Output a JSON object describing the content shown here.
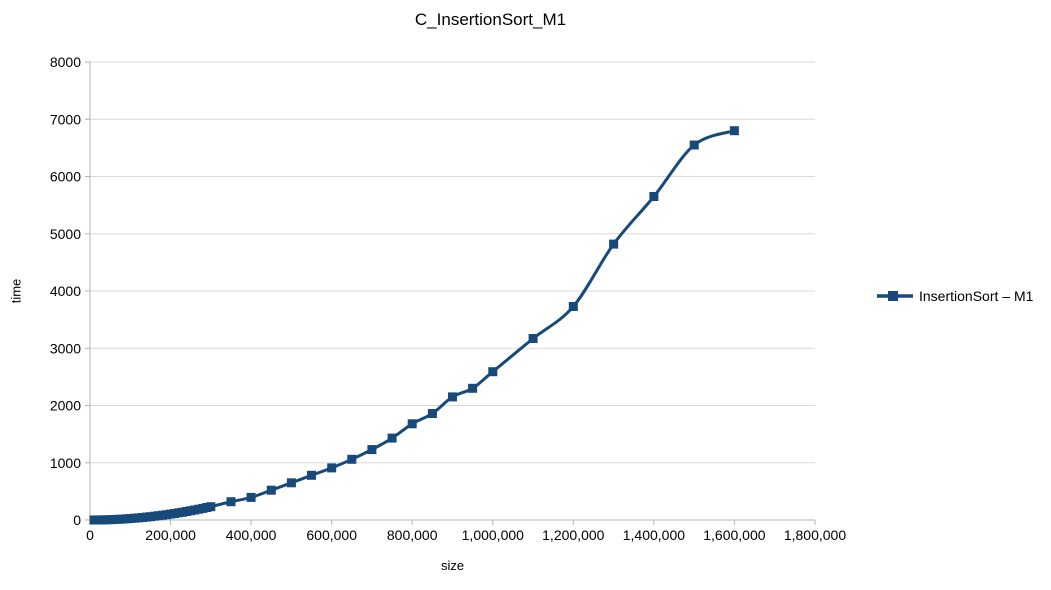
{
  "chart_data": {
    "type": "line",
    "title": "C_InsertionSort_M1",
    "xlabel": "size",
    "ylabel": "time",
    "xlim": [
      0,
      1800000
    ],
    "ylim": [
      0,
      8000
    ],
    "grid": "horizontal",
    "legend_position": "right",
    "marker": "square",
    "smooth": true,
    "colors": {
      "series": "#17497B",
      "grid": "#D9D9D9",
      "axis": "#B3B3B3",
      "text": "#000000",
      "background": "#FFFFFF"
    },
    "x": [
      10000,
      20000,
      30000,
      40000,
      50000,
      60000,
      70000,
      80000,
      90000,
      100000,
      110000,
      120000,
      130000,
      140000,
      150000,
      160000,
      170000,
      180000,
      190000,
      200000,
      210000,
      220000,
      230000,
      240000,
      250000,
      260000,
      270000,
      280000,
      290000,
      300000,
      350000,
      400000,
      450000,
      500000,
      550000,
      600000,
      650000,
      700000,
      750000,
      800000,
      850000,
      900000,
      950000,
      1000000,
      1100000,
      1200000,
      1300000,
      1400000,
      1500000,
      1600000
    ],
    "series": [
      {
        "name": "InsertionSort – M1",
        "color": "#17497B",
        "values": [
          0,
          1,
          2,
          4,
          6,
          9,
          12,
          16,
          21,
          26,
          31,
          37,
          44,
          51,
          58,
          66,
          75,
          84,
          93,
          103,
          114,
          125,
          137,
          149,
          162,
          175,
          189,
          203,
          218,
          233,
          320,
          395,
          520,
          650,
          780,
          910,
          1060,
          1230,
          1430,
          1680,
          1860,
          2150,
          2300,
          2590,
          3170,
          3730,
          4820,
          5650,
          6550,
          6800
        ]
      }
    ],
    "x_ticks": [
      {
        "value": 0,
        "label": "0"
      },
      {
        "value": 200000,
        "label": "200,000"
      },
      {
        "value": 400000,
        "label": "400,000"
      },
      {
        "value": 600000,
        "label": "600,000"
      },
      {
        "value": 800000,
        "label": "800,000"
      },
      {
        "value": 1000000,
        "label": "1,000,000"
      },
      {
        "value": 1200000,
        "label": "1,200,000"
      },
      {
        "value": 1400000,
        "label": "1,400,000"
      },
      {
        "value": 1600000,
        "label": "1,600,000"
      },
      {
        "value": 1800000,
        "label": "1,800,000"
      }
    ],
    "y_ticks": [
      {
        "value": 0,
        "label": "0"
      },
      {
        "value": 1000,
        "label": "1000"
      },
      {
        "value": 2000,
        "label": "2000"
      },
      {
        "value": 3000,
        "label": "3000"
      },
      {
        "value": 4000,
        "label": "4000"
      },
      {
        "value": 5000,
        "label": "5000"
      },
      {
        "value": 6000,
        "label": "6000"
      },
      {
        "value": 7000,
        "label": "7000"
      },
      {
        "value": 8000,
        "label": "8000"
      }
    ]
  }
}
